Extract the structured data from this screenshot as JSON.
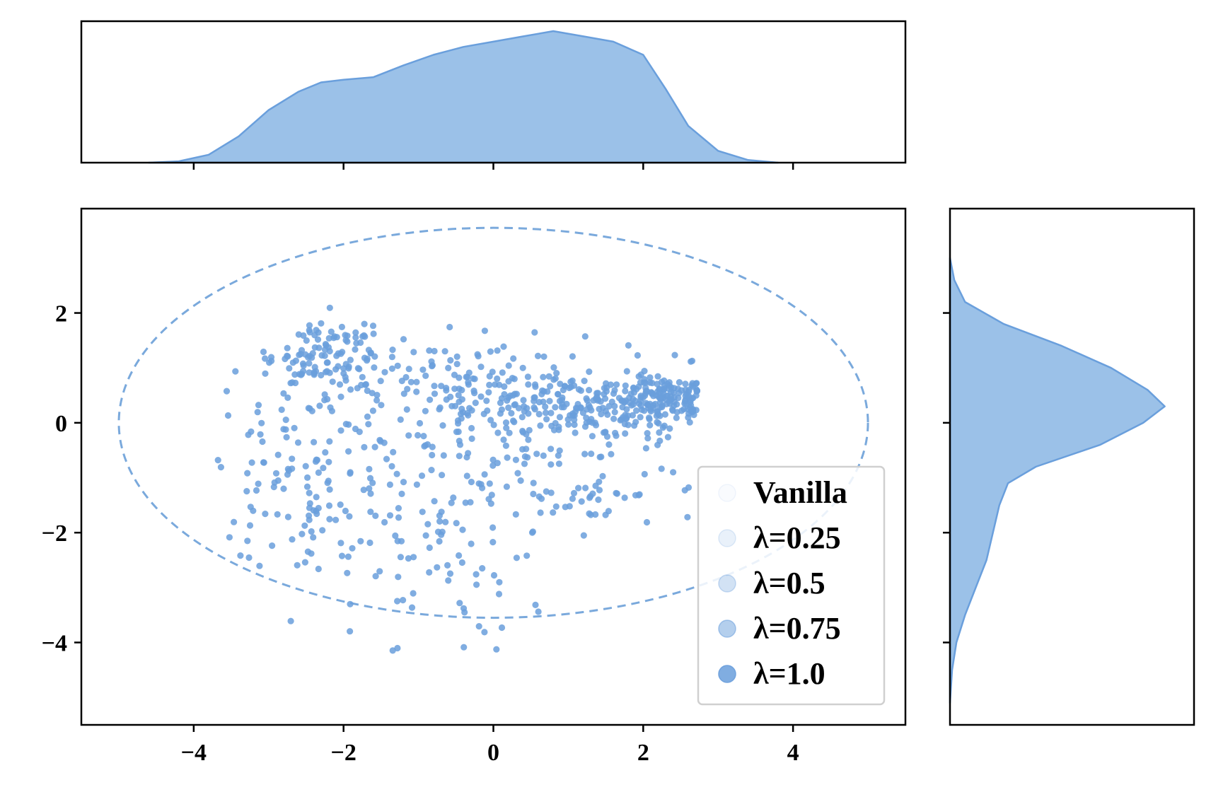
{
  "chart_data": {
    "type": "scatter",
    "subtype": "joint-plot",
    "title": "",
    "xlabel": "",
    "ylabel": "",
    "xlim": [
      -5.5,
      5.5
    ],
    "ylim": [
      -5.5,
      3.9
    ],
    "x_ticks": [
      -4,
      -2,
      0,
      2,
      4
    ],
    "y_ticks": [
      -4,
      -2,
      0,
      2
    ],
    "x_tick_labels": [
      "−4",
      "−2",
      "0",
      "2",
      "4"
    ],
    "y_tick_labels": [
      "−4",
      "−2",
      "0",
      "2"
    ],
    "grid": false,
    "color": "#6a9fdc",
    "fill_color": "#9bc1e8",
    "ellipse": {
      "center": [
        0,
        0
      ],
      "semi_x": 5.0,
      "semi_y": 3.55,
      "style": "dashed",
      "color": "#7aa9dc"
    },
    "legend": {
      "placement": "lower-right",
      "entries": [
        {
          "label": "Vanilla",
          "opacity": 0.04
        },
        {
          "label": "λ=0.25",
          "opacity": 0.15
        },
        {
          "label": "λ=0.5",
          "opacity": 0.3
        },
        {
          "label": "λ=0.75",
          "opacity": 0.5
        },
        {
          "label": "λ=1.0",
          "opacity": 0.85
        }
      ]
    },
    "marginal_x_density": {
      "x": [
        -4.6,
        -4.2,
        -3.8,
        -3.4,
        -3.0,
        -2.6,
        -2.3,
        -2.0,
        -1.6,
        -1.2,
        -0.8,
        -0.4,
        0.0,
        0.4,
        0.8,
        1.2,
        1.6,
        2.0,
        2.3,
        2.6,
        3.0,
        3.4,
        3.8
      ],
      "y": [
        0.0,
        0.01,
        0.06,
        0.2,
        0.4,
        0.54,
        0.61,
        0.63,
        0.65,
        0.74,
        0.82,
        0.88,
        0.92,
        0.96,
        1.0,
        0.96,
        0.92,
        0.82,
        0.56,
        0.28,
        0.09,
        0.02,
        0.0
      ]
    },
    "marginal_y_density": {
      "y": [
        -5.1,
        -4.5,
        -4.0,
        -3.5,
        -3.0,
        -2.5,
        -2.0,
        -1.5,
        -1.1,
        -0.8,
        -0.4,
        0.0,
        0.3,
        0.6,
        1.0,
        1.4,
        1.8,
        2.2,
        2.6,
        3.0
      ],
      "x": [
        0.0,
        0.01,
        0.03,
        0.07,
        0.12,
        0.17,
        0.2,
        0.23,
        0.27,
        0.4,
        0.7,
        0.9,
        1.0,
        0.92,
        0.75,
        0.52,
        0.25,
        0.07,
        0.02,
        0.0
      ]
    },
    "points_count": 900,
    "clusters": [
      {
        "cx": 2.3,
        "cy": 0.4,
        "sx": 0.28,
        "sy": 0.22,
        "n": 130
      },
      {
        "cx": 1.1,
        "cy": 0.35,
        "sx": 0.75,
        "sy": 0.38,
        "n": 220
      },
      {
        "cx": -2.3,
        "cy": 1.25,
        "sx": 0.45,
        "sy": 0.35,
        "n": 110
      },
      {
        "cx": -0.5,
        "cy": 0.6,
        "sx": 0.95,
        "sy": 0.55,
        "n": 140
      },
      {
        "cx": -2.6,
        "cy": -0.9,
        "sx": 0.55,
        "sy": 0.95,
        "n": 100
      },
      {
        "cx": -1.0,
        "cy": -1.7,
        "sx": 0.75,
        "sy": 1.1,
        "n": 130
      },
      {
        "cx": 1.0,
        "cy": -1.2,
        "sx": 0.9,
        "sy": 0.55,
        "n": 70
      }
    ]
  }
}
